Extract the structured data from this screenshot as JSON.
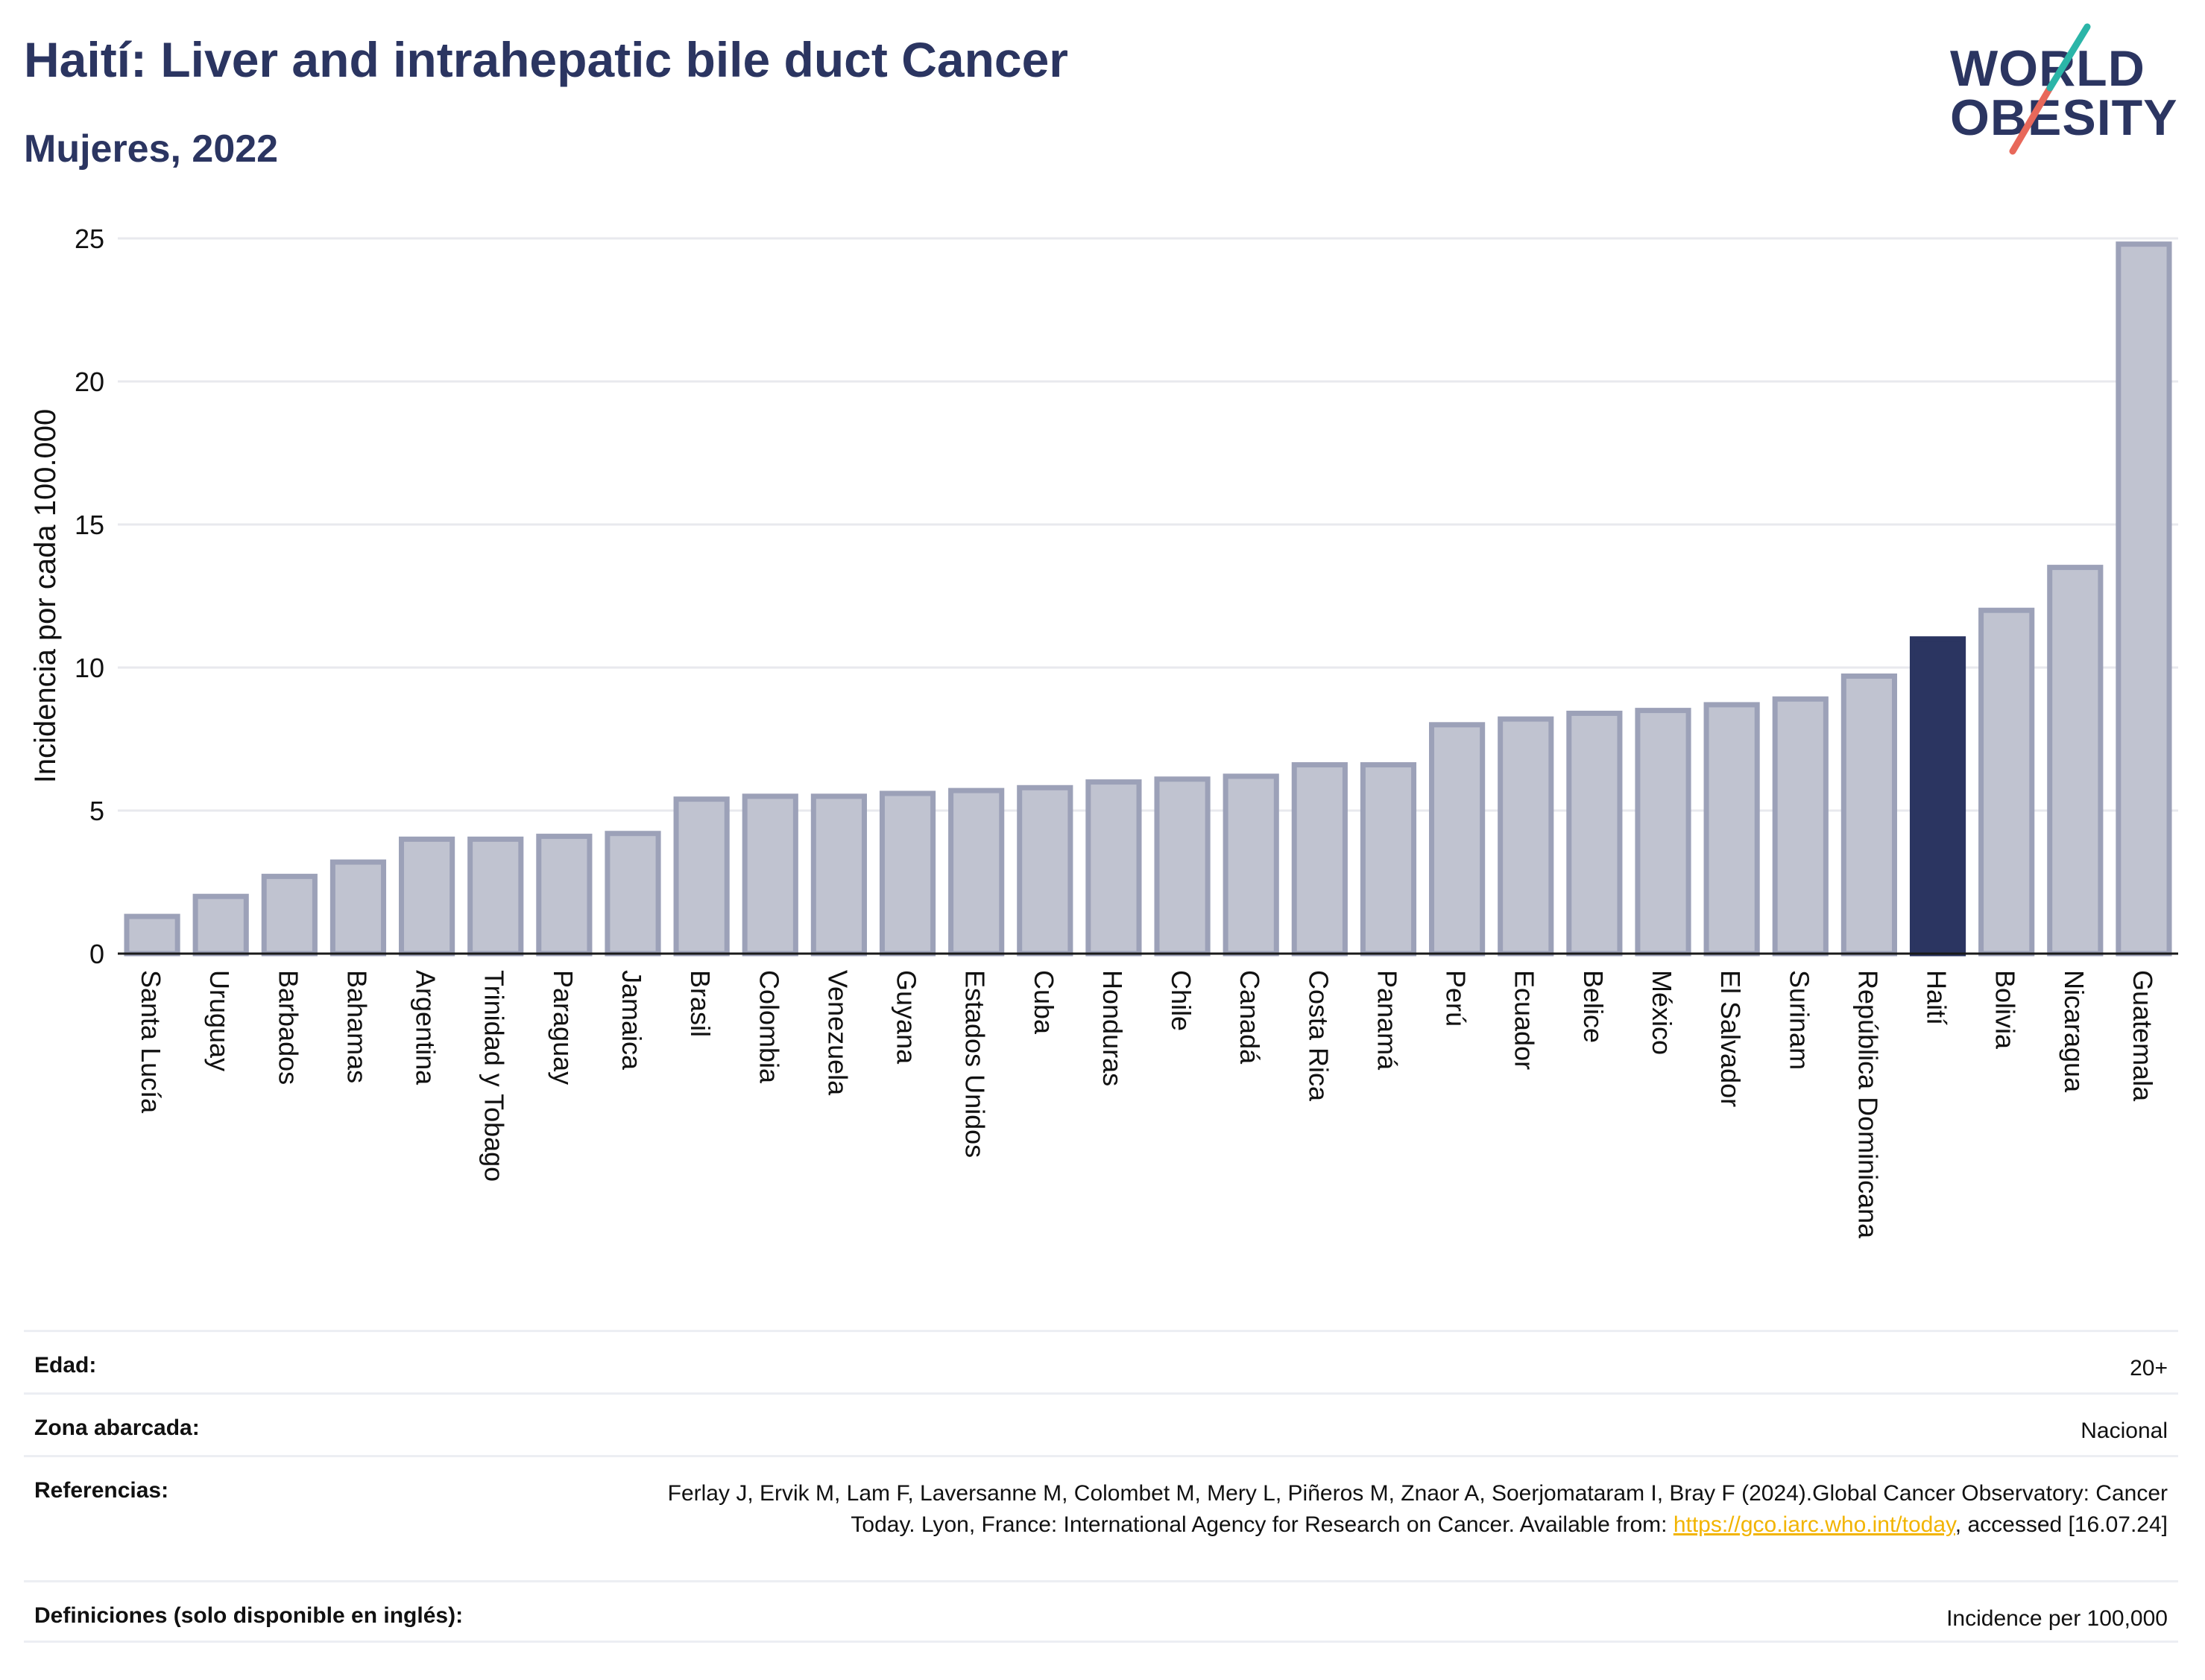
{
  "header": {
    "title": "Haití: Liver and intrahepatic bile duct Cancer",
    "subtitle": "Mujeres, 2022"
  },
  "logo": {
    "line1": "WORLD",
    "line2": "OBESITY"
  },
  "colors": {
    "bar": "#c0c3d0",
    "bar_stroke": "#9ca1b8",
    "highlight": "#2b3561",
    "grid": "#e8e9ee"
  },
  "chart_data": {
    "type": "bar",
    "ylabel": "Incidencia por cada 100.000",
    "ylim": [
      0,
      25
    ],
    "yticks": [
      0,
      5,
      10,
      15,
      20,
      25
    ],
    "highlight": "Haití",
    "categories": [
      "Santa Lucía",
      "Uruguay",
      "Barbados",
      "Bahamas",
      "Argentina",
      "Trinidad y Tobago",
      "Paraguay",
      "Jamaica",
      "Brasil",
      "Colombia",
      "Venezuela",
      "Guyana",
      "Estados Unidos",
      "Cuba",
      "Honduras",
      "Chile",
      "Canadá",
      "Costa Rica",
      "Panamá",
      "Perú",
      "Ecuador",
      "Belice",
      "México",
      "El Salvador",
      "Surinam",
      "República Dominicana",
      "Haití",
      "Bolivia",
      "Nicaragua",
      "Guatemala"
    ],
    "values": [
      1.3,
      2.0,
      2.7,
      3.2,
      4.0,
      4.0,
      4.1,
      4.2,
      5.4,
      5.5,
      5.5,
      5.6,
      5.7,
      5.8,
      6.0,
      6.1,
      6.2,
      6.6,
      6.6,
      8.0,
      8.2,
      8.4,
      8.5,
      8.7,
      8.9,
      9.7,
      11.0,
      12.0,
      13.5,
      24.8
    ]
  },
  "info": {
    "age_label": "Edad:",
    "age_value": "20+",
    "area_label": "Zona abarcada:",
    "area_value": "Nacional",
    "ref_label": "Referencias:",
    "ref_text": "Ferlay J, Ervik M, Lam F, Laversanne M, Colombet M, Mery L, Piñeros M, Znaor A, Soerjomataram I, Bray F (2024).Global Cancer Observatory: Cancer Today. Lyon, France: International Agency for Research on Cancer. Available from: ",
    "ref_link": "https://gco.iarc.who.int/today",
    "ref_suffix": ", accessed [16.07.24]",
    "def_label": "Definiciones (solo disponible en inglés):",
    "def_value": "Incidence per 100,000"
  }
}
